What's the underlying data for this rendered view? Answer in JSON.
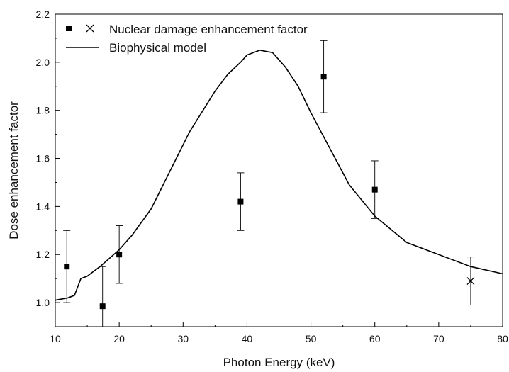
{
  "chart_data": {
    "type": "scatter",
    "xlabel": "Photon Energy (keV)",
    "ylabel": "Dose enhancement factor",
    "xlim": [
      10,
      80
    ],
    "ylim": [
      0.9,
      2.2
    ],
    "xticks": [
      "10",
      "20",
      "30",
      "40",
      "50",
      "60",
      "70",
      "80"
    ],
    "yticks": [
      "1.0",
      "1.2",
      "1.4",
      "1.6",
      "1.8",
      "2.0",
      "2.2"
    ],
    "grid": false,
    "legend_position": "top-left",
    "legend": {
      "markers_entry": "Nuclear damage enhancement factor",
      "line_entry": "Biophysical model"
    },
    "series": [
      {
        "name": "Nuclear damage enhancement factor",
        "type": "scatter",
        "marker": "square",
        "points": [
          {
            "x": 11.8,
            "y": 1.15,
            "err_low": 1.0,
            "err_high": 1.3
          },
          {
            "x": 17.4,
            "y": 0.985,
            "err_low": 0.9,
            "err_high": 1.15
          },
          {
            "x": 20.0,
            "y": 1.2,
            "err_low": 1.08,
            "err_high": 1.32
          },
          {
            "x": 39.0,
            "y": 1.42,
            "err_low": 1.3,
            "err_high": 1.54
          },
          {
            "x": 52.0,
            "y": 1.94,
            "err_low": 1.79,
            "err_high": 2.09
          },
          {
            "x": 60.0,
            "y": 1.47,
            "err_low": 1.35,
            "err_high": 1.59
          }
        ]
      },
      {
        "name": "Nuclear damage enhancement factor",
        "type": "scatter",
        "marker": "cross",
        "points": [
          {
            "x": 75.0,
            "y": 1.09,
            "err_low": 0.99,
            "err_high": 1.19
          }
        ]
      },
      {
        "name": "Biophysical model",
        "type": "line",
        "x": [
          10,
          12,
          13,
          14,
          15,
          17,
          20,
          22,
          25,
          28,
          31,
          35,
          37,
          39,
          40,
          42,
          44,
          46,
          48,
          50,
          53,
          56,
          60,
          65,
          69,
          75,
          80
        ],
        "y": [
          1.01,
          1.02,
          1.03,
          1.1,
          1.11,
          1.15,
          1.22,
          1.28,
          1.39,
          1.55,
          1.71,
          1.88,
          1.95,
          2.0,
          2.03,
          2.05,
          2.04,
          1.98,
          1.9,
          1.79,
          1.64,
          1.49,
          1.36,
          1.25,
          1.21,
          1.15,
          1.12
        ]
      }
    ],
    "colors": {
      "marker": "#000000",
      "line": "#000000",
      "axis": "#000000"
    }
  }
}
